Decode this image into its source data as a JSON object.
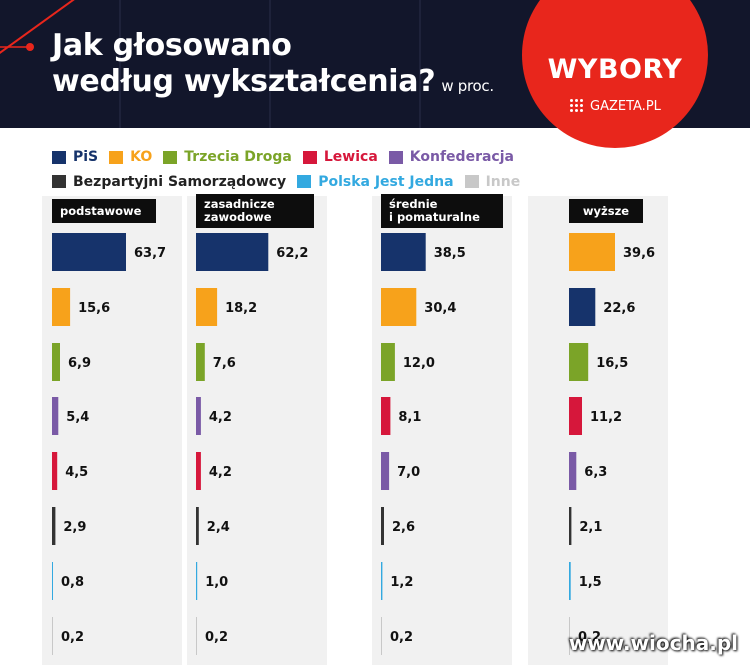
{
  "header": {
    "title_line1": "Jak głosowano",
    "title_line2": "według wykształcenia?",
    "title_unit": "w proc.",
    "badge_title": "WYBORY",
    "badge_brand": "GAZETA.PL"
  },
  "watermark": "www.wiocha.pl",
  "colors": {
    "PiS": "#16336b",
    "KO": "#f7a21b",
    "Trzecia Droga": "#7ba428",
    "Lewica": "#d6173b",
    "Konfederacja": "#7a5aa6",
    "Bezpartyjni Samorządowcy": "#333333",
    "Polska Jest Jedna": "#33a9e0",
    "Inne": "#c8c8c8"
  },
  "chart_data": {
    "type": "bar",
    "unit": "w proc.",
    "legend": [
      "PiS",
      "KO",
      "Trzecia Droga",
      "Lewica",
      "Konfederacja",
      "Bezpartyjni Samorządowcy",
      "Polska Jest Jedna",
      "Inne"
    ],
    "groups": [
      {
        "category": "podstawowe",
        "category_lines": [
          "podstawowe"
        ],
        "bars": [
          {
            "party": "PiS",
            "value": 63.7,
            "label": "63,7"
          },
          {
            "party": "KO",
            "value": 15.6,
            "label": "15,6"
          },
          {
            "party": "Trzecia Droga",
            "value": 6.9,
            "label": "6,9"
          },
          {
            "party": "Konfederacja",
            "value": 5.4,
            "label": "5,4"
          },
          {
            "party": "Lewica",
            "value": 4.5,
            "label": "4,5"
          },
          {
            "party": "Bezpartyjni Samorządowcy",
            "value": 2.9,
            "label": "2,9"
          },
          {
            "party": "Polska Jest Jedna",
            "value": 0.8,
            "label": "0,8"
          },
          {
            "party": "Inne",
            "value": 0.2,
            "label": "0,2"
          }
        ]
      },
      {
        "category": "zasadnicze zawodowe",
        "category_lines": [
          "zasadnicze",
          "zawodowe"
        ],
        "bars": [
          {
            "party": "PiS",
            "value": 62.2,
            "label": "62,2"
          },
          {
            "party": "KO",
            "value": 18.2,
            "label": "18,2"
          },
          {
            "party": "Trzecia Droga",
            "value": 7.6,
            "label": "7,6"
          },
          {
            "party": "Konfederacja",
            "value": 4.2,
            "label": "4,2"
          },
          {
            "party": "Lewica",
            "value": 4.2,
            "label": "4,2"
          },
          {
            "party": "Bezpartyjni Samorządowcy",
            "value": 2.4,
            "label": "2,4"
          },
          {
            "party": "Polska Jest Jedna",
            "value": 1.0,
            "label": "1,0"
          },
          {
            "party": "Inne",
            "value": 0.2,
            "label": "0,2"
          }
        ]
      },
      {
        "category": "średnie i pomaturalne",
        "category_lines": [
          "średnie",
          "i pomaturalne"
        ],
        "bars": [
          {
            "party": "PiS",
            "value": 38.5,
            "label": "38,5"
          },
          {
            "party": "KO",
            "value": 30.4,
            "label": "30,4"
          },
          {
            "party": "Trzecia Droga",
            "value": 12.0,
            "label": "12,0"
          },
          {
            "party": "Lewica",
            "value": 8.1,
            "label": "8,1"
          },
          {
            "party": "Konfederacja",
            "value": 7.0,
            "label": "7,0"
          },
          {
            "party": "Bezpartyjni Samorządowcy",
            "value": 2.6,
            "label": "2,6"
          },
          {
            "party": "Polska Jest Jedna",
            "value": 1.2,
            "label": "1,2"
          },
          {
            "party": "Inne",
            "value": 0.2,
            "label": "0,2"
          }
        ]
      },
      {
        "category": "wyższe",
        "category_lines": [
          "wyższe"
        ],
        "bars": [
          {
            "party": "KO",
            "value": 39.6,
            "label": "39,6"
          },
          {
            "party": "PiS",
            "value": 22.6,
            "label": "22,6"
          },
          {
            "party": "Trzecia Droga",
            "value": 16.5,
            "label": "16,5"
          },
          {
            "party": "Lewica",
            "value": 11.2,
            "label": "11,2"
          },
          {
            "party": "Konfederacja",
            "value": 6.3,
            "label": "6,3"
          },
          {
            "party": "Bezpartyjni Samorządowcy",
            "value": 2.1,
            "label": "2,1"
          },
          {
            "party": "Polska Jest Jedna",
            "value": 1.5,
            "label": "1,5"
          },
          {
            "party": "Inne",
            "value": 0.2,
            "label": "0,2"
          }
        ]
      }
    ]
  }
}
